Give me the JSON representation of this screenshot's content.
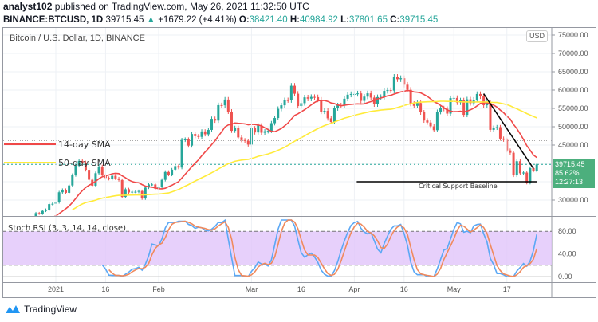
{
  "header": {
    "author": "analyst102",
    "published": "published on TradingView.com, May 26, 2021 11:32:50 UTC",
    "symbol": "BINANCE:BTCUSD, 1D",
    "last": "39715.45",
    "change": "+1679.22 (+4.41%)",
    "o_label": "O:",
    "o": "38421.40",
    "h_label": "H:",
    "h": "40984.92",
    "l_label": "L:",
    "l": "37801.65",
    "c_label": "C:",
    "c": "39715.45"
  },
  "pane_title": "Bitcoin / U.S. Dollar, 1D, BINANCE",
  "currency": "USD",
  "price_label": {
    "price": "39715.45",
    "percent": "85.62%",
    "countdown": "12:27:13"
  },
  "indicator_title": "Stoch RSI (3, 3, 14, 14, close)",
  "annotations": {
    "sma14": "14-day SMA",
    "sma50": "50-day SMA",
    "support": "Critical Support Baseline"
  },
  "brand": "TradingView",
  "colors": {
    "up": "#26a69a",
    "down": "#ef5350",
    "sma14": "#f04848",
    "sma50": "#ffeb3b",
    "k": "#5ba8f5",
    "d": "#f08a5d",
    "rsi_band": "#e1c4fa",
    "label": "#4caf7d"
  },
  "chart_data": {
    "type": "candlestick",
    "start_date": "2020-12-17",
    "interval": "1D",
    "ylim": [
      26000,
      76000
    ],
    "y_ticks": [
      "75000.00",
      "70000.00",
      "65000.00",
      "60000.00",
      "55000.00",
      "50000.00",
      "45000.00",
      "30000.00"
    ],
    "y_tick_values": [
      75000,
      70000,
      65000,
      60000,
      55000,
      50000,
      45000,
      30000
    ],
    "x_ticks": [
      {
        "label": "2021",
        "date": "2021-01-01"
      },
      {
        "label": "16",
        "date": "2021-01-16"
      },
      {
        "label": "Feb",
        "date": "2021-02-01"
      },
      {
        "label": "Mar",
        "date": "2021-03-01"
      },
      {
        "label": "16",
        "date": "2021-03-16"
      },
      {
        "label": "Apr",
        "date": "2021-04-01"
      },
      {
        "label": "16",
        "date": "2021-04-16"
      },
      {
        "label": "May",
        "date": "2021-05-01"
      },
      {
        "label": "17",
        "date": "2021-05-17"
      }
    ],
    "closes": [
      23150,
      23860,
      23480,
      23470,
      22720,
      23820,
      23250,
      23720,
      24690,
      26440,
      26270,
      27040,
      27370,
      28890,
      28980,
      29380,
      32120,
      32780,
      31970,
      33990,
      36820,
      39370,
      40670,
      40240,
      38240,
      35540,
      33920,
      37320,
      39150,
      36770,
      36020,
      35790,
      36630,
      35890,
      35470,
      30850,
      32950,
      32080,
      32260,
      32260,
      32470,
      30420,
      33400,
      34260,
      34260,
      33110,
      33530,
      35510,
      37660,
      36950,
      38290,
      39260,
      38870,
      46400,
      46530,
      44850,
      48010,
      47440,
      47230,
      48720,
      47940,
      49140,
      52150,
      51680,
      55890,
      55840,
      57410,
      54130,
      48900,
      49680,
      47080,
      46340,
      46150,
      45140,
      49590,
      48440,
      50350,
      48370,
      48760,
      48880,
      50970,
      52380,
      54880,
      55850,
      57250,
      57230,
      61180,
      59000,
      55640,
      56430,
      58010,
      57660,
      58130,
      58060,
      57390,
      54100,
      54340,
      52300,
      51290,
      55020,
      55860,
      55780,
      57630,
      58730,
      58920,
      58930,
      59090,
      57060,
      58210,
      59110,
      57950,
      56100,
      58080,
      58130,
      59770,
      59980,
      59860,
      63580,
      62960,
      63230,
      61450,
      60070,
      56270,
      55700,
      56470,
      53910,
      51700,
      51150,
      50110,
      49070,
      54040,
      55040,
      54880,
      53580,
      57800,
      57850,
      56610,
      57210,
      53240,
      57470,
      56430,
      57380,
      58930,
      58280,
      55860,
      56710,
      49150,
      49720,
      49880,
      46760,
      46450,
      43540,
      42910,
      36730,
      40600,
      37300,
      37500,
      34700,
      38700,
      38040,
      39715.45
    ],
    "sma_periods": [
      14,
      50
    ],
    "trendline": {
      "from": {
        "date": "2021-05-10",
        "price": 59000
      },
      "to": {
        "date": "2021-05-25",
        "price": 38600
      }
    },
    "support_line": {
      "from_date": "2021-04-01",
      "to_date": "2021-05-26",
      "price": 35000
    },
    "last_price": 39715.45,
    "ref_line_price": 46200,
    "stoch_rsi": {
      "ylim": [
        0,
        100
      ],
      "levels": [
        80,
        20
      ],
      "y_ticks": [
        "80.00",
        "40.00",
        "0.00"
      ],
      "y_tick_values": [
        80,
        40,
        0
      ]
    }
  }
}
